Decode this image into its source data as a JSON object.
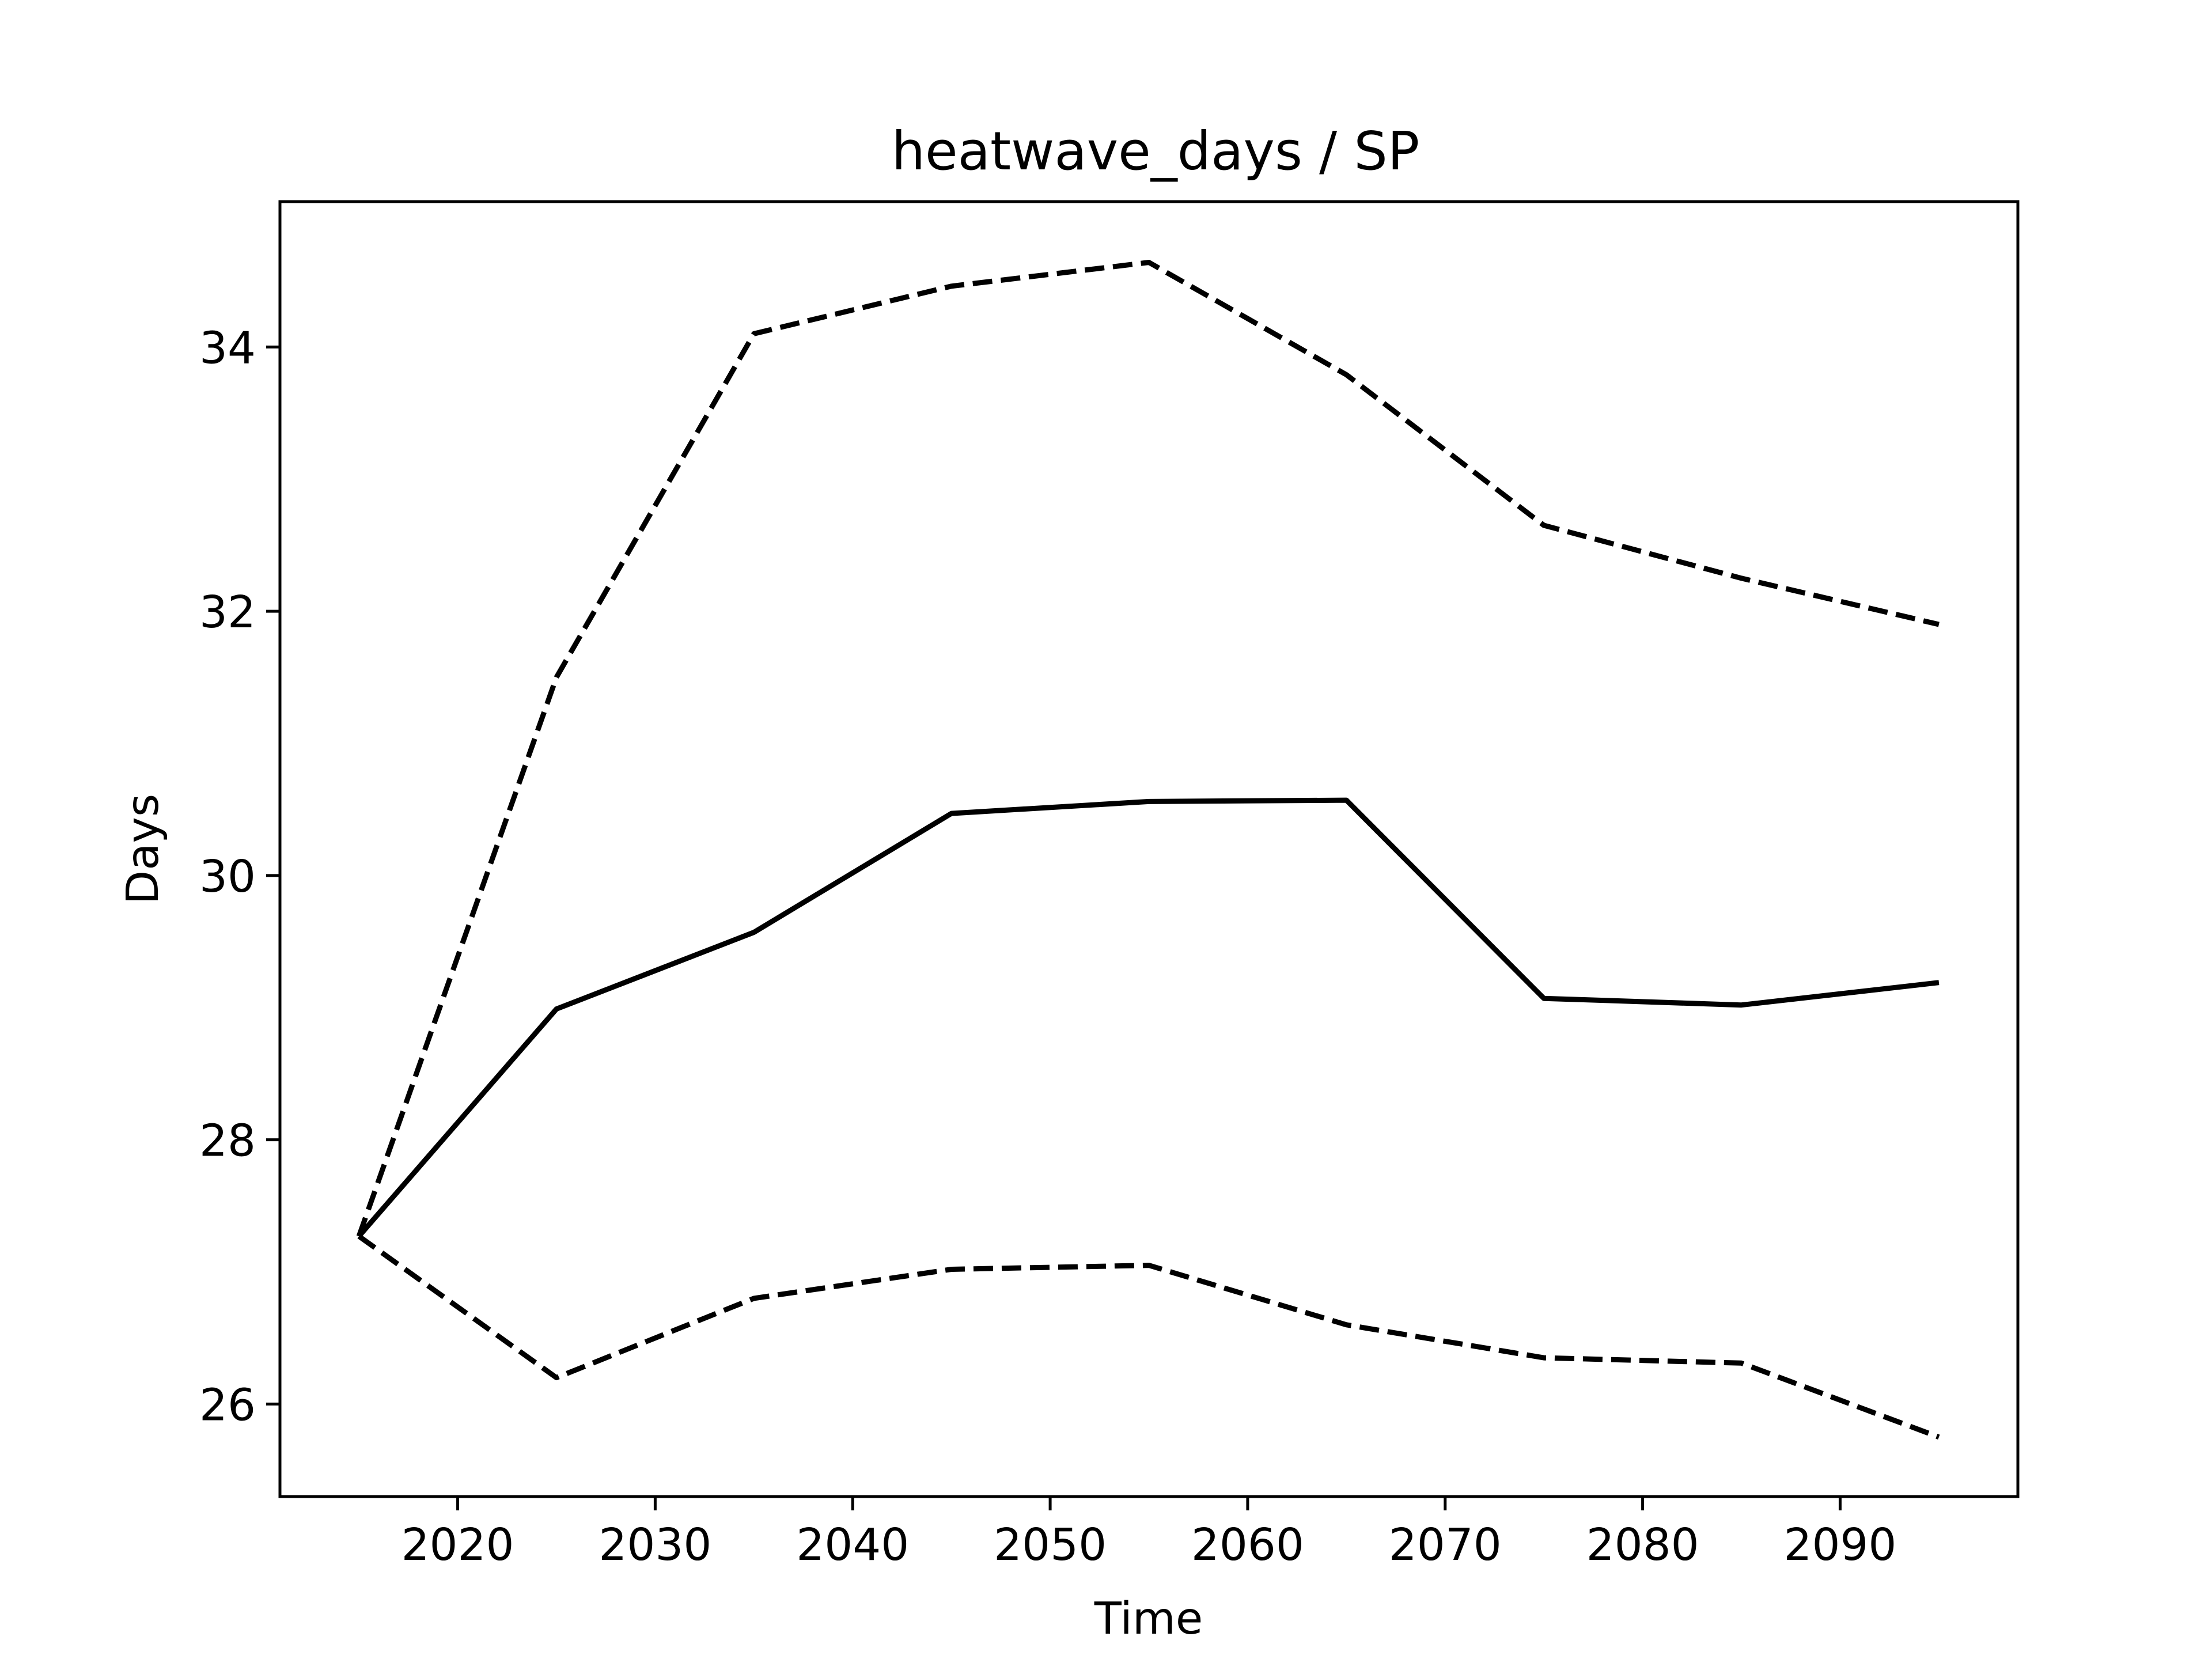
{
  "chart_data": {
    "type": "line",
    "title": "heatwave_days / SP",
    "xlabel": "Time",
    "ylabel": "Days",
    "xlim": [
      2011,
      2099
    ],
    "ylim": [
      25.3,
      35.1
    ],
    "xticks": [
      2020,
      2030,
      2040,
      2050,
      2060,
      2070,
      2080,
      2090
    ],
    "yticks": [
      26,
      28,
      30,
      32,
      34
    ],
    "grid": false,
    "x": [
      2015,
      2025,
      2035,
      2045,
      2055,
      2065,
      2075,
      2085,
      2095
    ],
    "series": [
      {
        "values": [
          27.27,
          28.99,
          29.57,
          30.47,
          30.56,
          30.57,
          29.07,
          29.02,
          29.19
        ],
        "style": "solid",
        "color": "#000000"
      },
      {
        "values": [
          27.27,
          31.5,
          34.1,
          34.46,
          34.64,
          33.79,
          32.65,
          32.25,
          31.9
        ],
        "style": "dashed",
        "color": "#000000"
      },
      {
        "values": [
          27.27,
          26.2,
          26.8,
          27.02,
          27.05,
          26.6,
          26.35,
          26.31,
          25.75
        ],
        "style": "dashed",
        "color": "#000000"
      }
    ]
  }
}
